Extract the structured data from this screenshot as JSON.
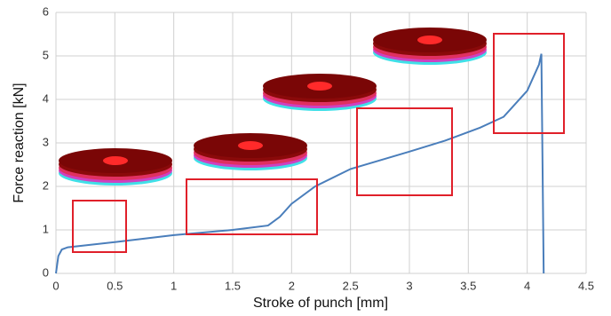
{
  "chart_data": {
    "type": "line",
    "x_label": "Stroke of punch [mm]",
    "y_label": "Force reaction [kN]",
    "xlim": [
      0,
      4.5
    ],
    "xticks": [
      0,
      0.5,
      1,
      1.5,
      2,
      2.5,
      3,
      3.5,
      4,
      4.5
    ],
    "ylim": [
      0,
      6
    ],
    "yticks": [
      0,
      1,
      2,
      3,
      4,
      5,
      6
    ],
    "grid": true,
    "series": [
      {
        "color": "#4a7ebb",
        "x": [
          0,
          0.02,
          0.05,
          0.1,
          0.5,
          1.0,
          1.5,
          1.8,
          1.9,
          2.0,
          2.2,
          2.5,
          3.0,
          3.3,
          3.6,
          3.8,
          4.0,
          4.1,
          4.12,
          4.14
        ],
        "values": [
          0,
          0.4,
          0.55,
          0.6,
          0.72,
          0.88,
          1.0,
          1.1,
          1.3,
          1.6,
          2.0,
          2.4,
          2.8,
          3.05,
          3.35,
          3.6,
          4.2,
          4.8,
          5.05,
          0
        ]
      }
    ]
  }
}
